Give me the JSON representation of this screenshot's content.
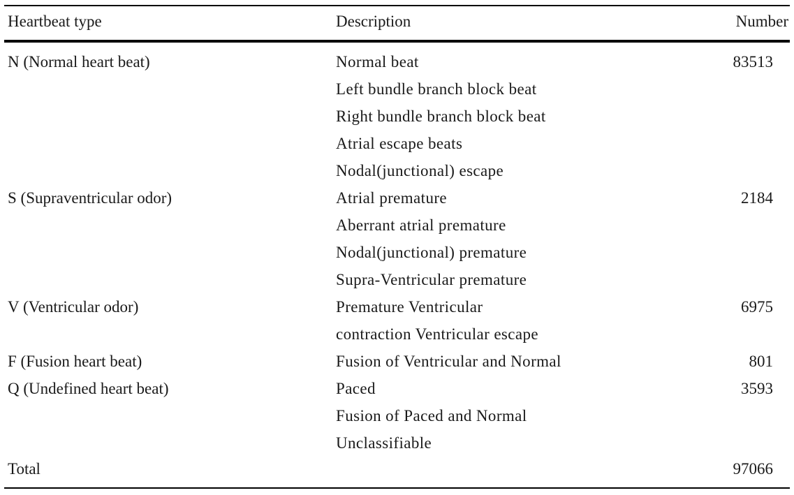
{
  "table": {
    "headers": {
      "type": "Heartbeat type",
      "description": "Description",
      "number": "Number"
    },
    "groups": [
      {
        "type": "N (Normal heart beat)",
        "number": "83513",
        "descriptions": [
          "Normal beat",
          "Left bundle branch block beat",
          "Right bundle branch block beat",
          "Atrial escape beats",
          "Nodal(junctional) escape"
        ]
      },
      {
        "type": "S (Supraventricular odor)",
        "number": "2184",
        "descriptions": [
          "Atrial premature",
          "Aberrant atrial premature",
          "Nodal(junctional) premature",
          "Supra-Ventricular premature"
        ]
      },
      {
        "type": "V (Ventricular odor)",
        "number": "6975",
        "descriptions": [
          "Premature Ventricular",
          "contraction Ventricular escape"
        ]
      },
      {
        "type": "F (Fusion heart beat)",
        "number": "801",
        "descriptions": [
          "Fusion of Ventricular and Normal"
        ]
      },
      {
        "type": "Q (Undefined heart beat)",
        "number": "3593",
        "descriptions": [
          "Paced",
          "Fusion of Paced and Normal",
          "Unclassifiable"
        ]
      }
    ],
    "total": {
      "label": "Total",
      "number": "97066"
    }
  }
}
